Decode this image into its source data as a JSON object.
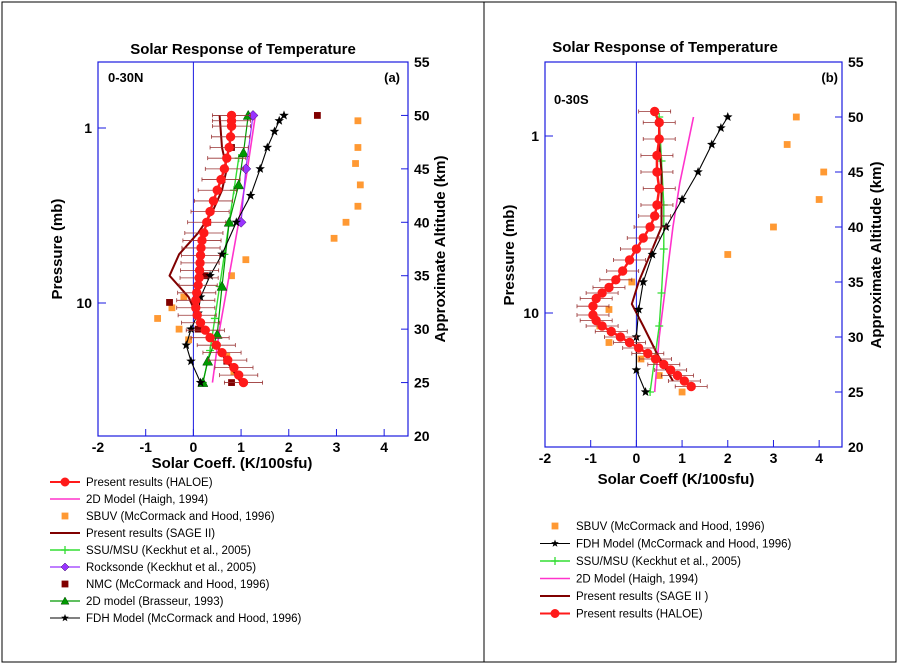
{
  "colors": {
    "blue": "#1a1ae0",
    "haloe": "#ff1a1a",
    "model2d": "#ff33cc",
    "sbuv": "#ff9933",
    "sage": "#800000",
    "ssu": "#33dd33",
    "rocksonde": "#9933ff",
    "nmc": "#800000",
    "brasseur": "#009900",
    "fdh": "#000000"
  },
  "chart_data": [
    {
      "type": "scatter",
      "panel": "a",
      "title": "Solar Response of Temperature",
      "region_label": "0-30N",
      "panel_label": "(a)",
      "xlabel": "Solar Coeff. (K/100sfu)",
      "ylabel": "Pressure (mb)",
      "y2label": "Approximate Altitude (km)",
      "xlim": [
        -2,
        4.5
      ],
      "x_ticks": [
        "-2",
        "-1",
        "0",
        "1",
        "2",
        "3",
        "4"
      ],
      "y_ticks": [
        "1",
        "10"
      ],
      "y2lim": [
        20,
        55
      ],
      "y2_ticks": [
        "20",
        "25",
        "30",
        "35",
        "40",
        "45",
        "50",
        "55"
      ],
      "legend_position": "below",
      "legend": [
        {
          "key": "haloe",
          "label": "Present results (HALOE)"
        },
        {
          "key": "model2d",
          "label": "2D Model (Haigh, 1994)"
        },
        {
          "key": "sbuv",
          "label": "SBUV (McCormack and Hood, 1996)"
        },
        {
          "key": "sage",
          "label": "Present results (SAGE II)"
        },
        {
          "key": "ssu",
          "label": "SSU/MSU (Keckhut et al., 2005)"
        },
        {
          "key": "rocksonde",
          "label": "Rocksonde (Keckhut et al., 2005)"
        },
        {
          "key": "nmc",
          "label": "NMC (McCormack and Hood, 1996)"
        },
        {
          "key": "brasseur",
          "label": "2D model (Brasseur, 1993)"
        },
        {
          "key": "fdh",
          "label": "FDH Model (McCormack and Hood, 1996)"
        }
      ],
      "series": {
        "haloe": {
          "x": [
            1.05,
            0.95,
            0.85,
            0.72,
            0.6,
            0.48,
            0.35,
            0.25,
            0.15,
            0.08,
            0.05,
            0.05,
            0.07,
            0.1,
            0.12,
            0.13,
            0.14,
            0.15,
            0.16,
            0.18,
            0.22,
            0.28,
            0.35,
            0.42,
            0.5,
            0.58,
            0.65,
            0.7,
            0.75,
            0.78,
            0.8,
            0.8,
            0.8
          ],
          "y": [
            25,
            25.7,
            26.4,
            27.1,
            27.8,
            28.5,
            29.2,
            29.9,
            30.6,
            31.3,
            32,
            32.7,
            33.4,
            34.1,
            34.8,
            35.5,
            36.2,
            36.9,
            37.6,
            38.3,
            39,
            40,
            41,
            42,
            43,
            44,
            45,
            46,
            47,
            48,
            49,
            49.5,
            50
          ],
          "xerr": 0.4
        },
        "model2d": {
          "x": [
            0.4,
            0.55,
            0.75,
            0.95,
            1.1,
            1.2,
            1.3
          ],
          "y": [
            25,
            30,
            35,
            40,
            44,
            47,
            50
          ]
        },
        "sbuv": {
          "x": [
            0.85,
            0.7,
            -0.1,
            -0.3,
            -0.75,
            -0.45,
            -0.2,
            0.8,
            1.1,
            2.95,
            3.2,
            3.45,
            3.5,
            3.4,
            3.45,
            3.45
          ],
          "y": [
            26,
            27.5,
            29,
            30,
            31,
            32,
            33,
            35,
            36.5,
            38.5,
            40,
            41.5,
            43.5,
            45.5,
            47,
            49.5
          ]
        },
        "sage": {
          "x": [
            1,
            0.7,
            0.4,
            0.1,
            -0.1,
            -0.5,
            -0.3,
            0.1,
            0.4,
            0.6,
            0.7,
            0.6,
            0.55
          ],
          "y": [
            25,
            27,
            29,
            31,
            33,
            35,
            37,
            39,
            41,
            43,
            45,
            47,
            50
          ]
        },
        "ssu": {
          "x": [
            0.2,
            0.35,
            0.45,
            0.55,
            0.65,
            0.75,
            0.85,
            0.95
          ],
          "y": [
            25,
            28,
            31,
            34,
            37,
            40,
            43,
            46
          ]
        },
        "rocksonde": {
          "x": [
            1,
            1.1,
            1.25
          ],
          "y": [
            40,
            45,
            50
          ]
        },
        "nmc": {
          "x": [
            0.8,
            0.7,
            0.1,
            -0.5,
            0.25,
            0.3,
            0.6,
            0.8,
            2.6
          ],
          "y": [
            25,
            27,
            30,
            32.5,
            35,
            40,
            44,
            47,
            50
          ]
        },
        "brasseur": {
          "x": [
            0.2,
            0.3,
            0.5,
            0.6,
            0.75,
            0.95,
            1.05,
            1.15
          ],
          "y": [
            25,
            27,
            29.5,
            34,
            40,
            43.5,
            46.5,
            50
          ]
        },
        "fdh": {
          "x": [
            0.15,
            -0.05,
            -0.15,
            -0.05,
            0.1,
            0.15,
            0.35,
            0.6,
            0.9,
            1.2,
            1.4,
            1.55,
            1.7,
            1.8,
            1.9
          ],
          "y": [
            25,
            27,
            28.5,
            30,
            31.5,
            33,
            35,
            37,
            40,
            42.5,
            45,
            47,
            48.5,
            49.5,
            50
          ]
        }
      }
    },
    {
      "type": "scatter",
      "panel": "b",
      "title": "Solar Response of Temperature",
      "region_label": "0-30S",
      "panel_label": "(b)",
      "xlabel": "Solar Coeff (K/100sfu)",
      "ylabel": "Pressure (mb)",
      "y2label": "Approximate Altitude (km)",
      "xlim": [
        -2,
        4.5
      ],
      "x_ticks": [
        "-2",
        "-1",
        "0",
        "1",
        "2",
        "3",
        "4"
      ],
      "y_ticks": [
        "1",
        "10"
      ],
      "y2lim": [
        20,
        55
      ],
      "y2_ticks": [
        "20",
        "25",
        "30",
        "35",
        "40",
        "45",
        "50",
        "55"
      ],
      "legend_position": "below",
      "legend": [
        {
          "key": "sbuv",
          "label": "SBUV (McCormack and Hood, 1996)"
        },
        {
          "key": "fdh",
          "label": "FDH Model (McCormack and Hood, 1996)"
        },
        {
          "key": "ssu",
          "label": "SSU/MSU (Keckhut et al., 2005)"
        },
        {
          "key": "model2d",
          "label": "2D Model (Haigh, 1994)"
        },
        {
          "key": "sage",
          "label": "Present results (SAGE II )"
        },
        {
          "key": "haloe",
          "label": "Present results (HALOE)"
        }
      ],
      "series": {
        "haloe": {
          "x": [
            1.2,
            1.05,
            0.9,
            0.75,
            0.6,
            0.42,
            0.25,
            0.05,
            -0.15,
            -0.35,
            -0.55,
            -0.75,
            -0.88,
            -0.95,
            -0.95,
            -0.88,
            -0.75,
            -0.6,
            -0.45,
            -0.3,
            -0.15,
            0,
            0.15,
            0.3,
            0.4,
            0.45,
            0.5,
            0.45,
            0.45,
            0.5,
            0.5,
            0.4
          ],
          "y": [
            25.5,
            26,
            26.5,
            27,
            27.5,
            28,
            28.5,
            29,
            29.5,
            30,
            30.5,
            31,
            31.5,
            32,
            32.8,
            33.5,
            34,
            34.5,
            35.2,
            36,
            37,
            38,
            39,
            40,
            41,
            42,
            43.5,
            45,
            46.5,
            48,
            49.5,
            50.5
          ],
          "xerr": 0.35
        },
        "model2d": {
          "x": [
            0.4,
            0.5,
            0.65,
            0.8,
            0.95,
            1.1,
            1.25
          ],
          "y": [
            25,
            30,
            35,
            40,
            44,
            47,
            50
          ]
        },
        "sbuv": {
          "x": [
            1,
            0.5,
            0.1,
            -0.6,
            -0.8,
            -0.6,
            -0.1,
            2,
            3,
            4,
            4.1,
            3.3,
            3.5
          ],
          "y": [
            25,
            26.5,
            28,
            29.5,
            31,
            32.5,
            35,
            37.5,
            40,
            42.5,
            45,
            47.5,
            50
          ]
        },
        "sage": {
          "x": [
            0.8,
            0.45,
            0.15,
            -0.1,
            0.05,
            0.3,
            0.55,
            0.55,
            0.55,
            0.5,
            0.5,
            0.45
          ],
          "y": [
            26,
            28.5,
            31,
            33,
            35,
            37.5,
            40,
            42.5,
            45,
            47.5,
            49,
            50
          ]
        },
        "ssu": {
          "x": [
            0.3,
            0.4,
            0.5,
            0.55,
            0.6,
            0.6,
            0.55,
            0.5
          ],
          "y": [
            25,
            28,
            31,
            34,
            38,
            42,
            46,
            50
          ]
        },
        "fdh": {
          "x": [
            0.2,
            0,
            0,
            0.05,
            0.15,
            0.35,
            0.65,
            1,
            1.35,
            1.65,
            1.85,
            2
          ],
          "y": [
            25,
            27,
            30,
            32.5,
            35,
            37.5,
            40,
            42.5,
            45,
            47.5,
            49,
            50
          ]
        }
      }
    }
  ]
}
